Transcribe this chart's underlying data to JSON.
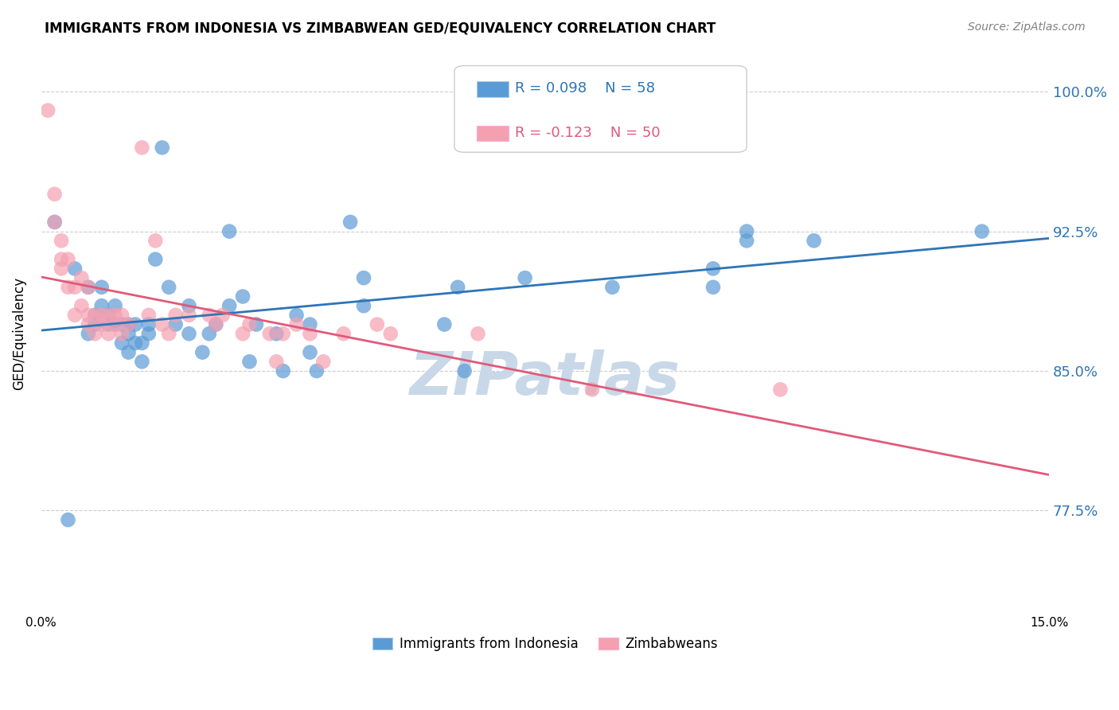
{
  "title": "IMMIGRANTS FROM INDONESIA VS ZIMBABWEAN GED/EQUIVALENCY CORRELATION CHART",
  "source": "Source: ZipAtlas.com",
  "ylabel": "GED/Equivalency",
  "xlim": [
    0.0,
    0.15
  ],
  "ylim": [
    0.72,
    1.02
  ],
  "yticks": [
    0.775,
    0.85,
    0.925,
    1.0
  ],
  "ytick_labels": [
    "77.5%",
    "85.0%",
    "92.5%",
    "100.0%"
  ],
  "xticks": [
    0.0,
    0.03,
    0.06,
    0.09,
    0.12,
    0.15
  ],
  "xtick_labels": [
    "0.0%",
    "",
    "",
    "",
    "",
    "15.0%"
  ],
  "blue_color": "#5b9bd5",
  "pink_color": "#f4a0b0",
  "blue_line_color": "#2e75b6",
  "pink_line_color": "#e05a7a",
  "blue_R": 0.098,
  "blue_N": 58,
  "pink_R": -0.123,
  "pink_N": 50,
  "watermark": "ZIPatlas",
  "watermark_color": "#c8d8e8",
  "legend_label_blue": "Immigrants from Indonesia",
  "legend_label_pink": "Zimbabweans",
  "blue_x": [
    0.002,
    0.004,
    0.005,
    0.007,
    0.007,
    0.008,
    0.008,
    0.009,
    0.009,
    0.01,
    0.01,
    0.011,
    0.011,
    0.012,
    0.012,
    0.013,
    0.013,
    0.013,
    0.014,
    0.014,
    0.015,
    0.015,
    0.016,
    0.016,
    0.017,
    0.018,
    0.019,
    0.02,
    0.022,
    0.022,
    0.024,
    0.025,
    0.026,
    0.028,
    0.028,
    0.03,
    0.031,
    0.032,
    0.035,
    0.036,
    0.038,
    0.04,
    0.04,
    0.041,
    0.046,
    0.048,
    0.048,
    0.06,
    0.062,
    0.063,
    0.072,
    0.085,
    0.1,
    0.1,
    0.105,
    0.105,
    0.115,
    0.14
  ],
  "blue_y": [
    0.93,
    0.77,
    0.905,
    0.87,
    0.895,
    0.875,
    0.88,
    0.885,
    0.895,
    0.875,
    0.88,
    0.875,
    0.885,
    0.865,
    0.875,
    0.86,
    0.87,
    0.875,
    0.865,
    0.875,
    0.855,
    0.865,
    0.87,
    0.875,
    0.91,
    0.97,
    0.895,
    0.875,
    0.87,
    0.885,
    0.86,
    0.87,
    0.875,
    0.885,
    0.925,
    0.89,
    0.855,
    0.875,
    0.87,
    0.85,
    0.88,
    0.86,
    0.875,
    0.85,
    0.93,
    0.885,
    0.9,
    0.875,
    0.895,
    0.85,
    0.9,
    0.895,
    0.895,
    0.905,
    0.92,
    0.925,
    0.92,
    0.925
  ],
  "pink_x": [
    0.001,
    0.002,
    0.002,
    0.003,
    0.003,
    0.003,
    0.004,
    0.004,
    0.005,
    0.005,
    0.006,
    0.006,
    0.007,
    0.007,
    0.007,
    0.008,
    0.008,
    0.009,
    0.009,
    0.01,
    0.01,
    0.011,
    0.011,
    0.012,
    0.012,
    0.013,
    0.015,
    0.016,
    0.017,
    0.018,
    0.019,
    0.02,
    0.022,
    0.025,
    0.026,
    0.027,
    0.03,
    0.031,
    0.034,
    0.035,
    0.036,
    0.038,
    0.04,
    0.042,
    0.045,
    0.05,
    0.052,
    0.065,
    0.082,
    0.11
  ],
  "pink_y": [
    0.99,
    0.93,
    0.945,
    0.905,
    0.91,
    0.92,
    0.895,
    0.91,
    0.88,
    0.895,
    0.885,
    0.9,
    0.875,
    0.88,
    0.895,
    0.87,
    0.88,
    0.875,
    0.88,
    0.87,
    0.88,
    0.875,
    0.88,
    0.87,
    0.88,
    0.875,
    0.97,
    0.88,
    0.92,
    0.875,
    0.87,
    0.88,
    0.88,
    0.88,
    0.875,
    0.88,
    0.87,
    0.875,
    0.87,
    0.855,
    0.87,
    0.875,
    0.87,
    0.855,
    0.87,
    0.875,
    0.87,
    0.87,
    0.84,
    0.84
  ]
}
